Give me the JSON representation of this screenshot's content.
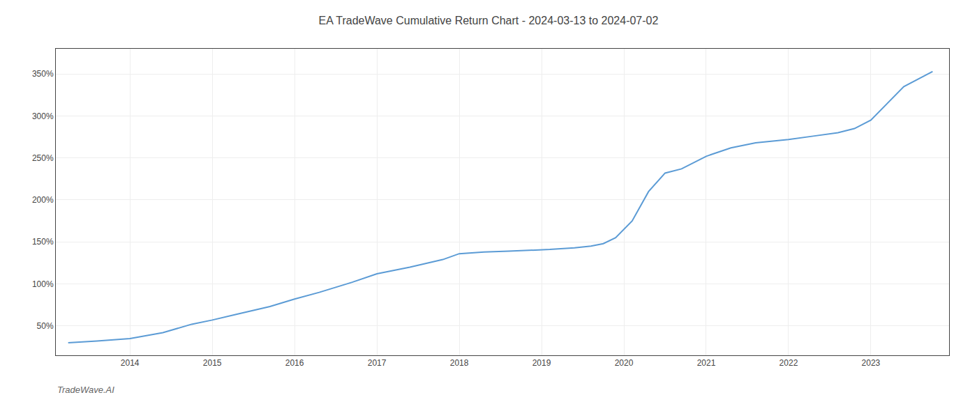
{
  "chart_data": {
    "type": "line",
    "title": "EA TradeWave Cumulative Return Chart - 2024-03-13 to 2024-07-02",
    "annotations": [
      {
        "text": "TradeWave.AI"
      }
    ],
    "x": [
      2013.25,
      2013.6,
      2014.0,
      2014.4,
      2014.75,
      2015.0,
      2015.3,
      2015.7,
      2016.0,
      2016.3,
      2016.7,
      2017.0,
      2017.4,
      2017.8,
      2018.0,
      2018.3,
      2018.6,
      2018.9,
      2019.1,
      2019.4,
      2019.6,
      2019.75,
      2019.9,
      2020.1,
      2020.3,
      2020.5,
      2020.7,
      2021.0,
      2021.3,
      2021.6,
      2022.0,
      2022.3,
      2022.6,
      2022.8,
      2023.0,
      2023.4,
      2023.75
    ],
    "values": [
      30,
      32,
      35,
      42,
      52,
      57,
      64,
      73,
      82,
      90,
      102,
      112,
      120,
      129,
      136,
      138,
      139,
      140,
      141,
      143,
      145,
      148,
      155,
      175,
      210,
      232,
      237,
      252,
      262,
      268,
      272,
      276,
      280,
      285,
      295,
      335,
      353
    ],
    "color": "#5b9bd5",
    "xlim": [
      2013.1,
      2023.95
    ],
    "ylim": [
      15,
      380
    ],
    "xticks": [
      2014,
      2015,
      2016,
      2017,
      2018,
      2019,
      2020,
      2021,
      2022,
      2023
    ],
    "yticks": [
      {
        "value": 50,
        "label": "50%"
      },
      {
        "value": 100,
        "label": "100%"
      },
      {
        "value": 150,
        "label": "150%"
      },
      {
        "value": 200,
        "label": "200%"
      },
      {
        "value": 250,
        "label": "250%"
      },
      {
        "value": 300,
        "label": "300%"
      },
      {
        "value": 350,
        "label": "350%"
      }
    ],
    "grid": true
  }
}
